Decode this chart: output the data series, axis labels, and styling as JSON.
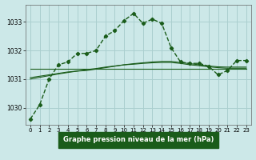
{
  "bg_color": "#cce8e8",
  "grid_color": "#aacfcf",
  "line_color": "#1a5c1a",
  "title": "Graphe pression niveau de la mer (hPa)",
  "xlim": [
    -0.5,
    23.5
  ],
  "ylim": [
    1029.4,
    1033.6
  ],
  "yticks": [
    1030,
    1031,
    1032,
    1033
  ],
  "xticks": [
    0,
    1,
    2,
    3,
    4,
    5,
    6,
    7,
    8,
    9,
    10,
    11,
    12,
    13,
    14,
    15,
    16,
    17,
    18,
    19,
    20,
    21,
    22,
    23
  ],
  "main_series": [
    1029.6,
    1030.1,
    1031.0,
    1031.5,
    1031.6,
    1031.9,
    1031.9,
    1032.0,
    1032.5,
    1032.7,
    1033.05,
    1033.3,
    1032.95,
    1033.1,
    1032.95,
    1032.1,
    1031.6,
    1031.55,
    1031.55,
    1031.45,
    1031.15,
    1031.3,
    1031.65,
    1031.65
  ],
  "trend1": [
    1031.35,
    1031.35,
    1031.35,
    1031.35,
    1031.35,
    1031.35,
    1031.35,
    1031.35,
    1031.35,
    1031.35,
    1031.35,
    1031.35,
    1031.35,
    1031.35,
    1031.35,
    1031.35,
    1031.35,
    1031.35,
    1031.35,
    1031.35,
    1031.35,
    1031.35,
    1031.35,
    1031.35
  ],
  "trend2": [
    1031.05,
    1031.1,
    1031.15,
    1031.2,
    1031.25,
    1031.28,
    1031.3,
    1031.35,
    1031.4,
    1031.45,
    1031.5,
    1031.52,
    1031.55,
    1031.57,
    1031.58,
    1031.58,
    1031.55,
    1031.5,
    1031.47,
    1031.43,
    1031.4,
    1031.38,
    1031.38,
    1031.38
  ],
  "trend3": [
    1031.0,
    1031.06,
    1031.12,
    1031.18,
    1031.23,
    1031.28,
    1031.33,
    1031.37,
    1031.42,
    1031.46,
    1031.5,
    1031.54,
    1031.57,
    1031.6,
    1031.62,
    1031.62,
    1031.58,
    1031.54,
    1031.5,
    1031.46,
    1031.43,
    1031.42,
    1031.42,
    1031.42
  ]
}
